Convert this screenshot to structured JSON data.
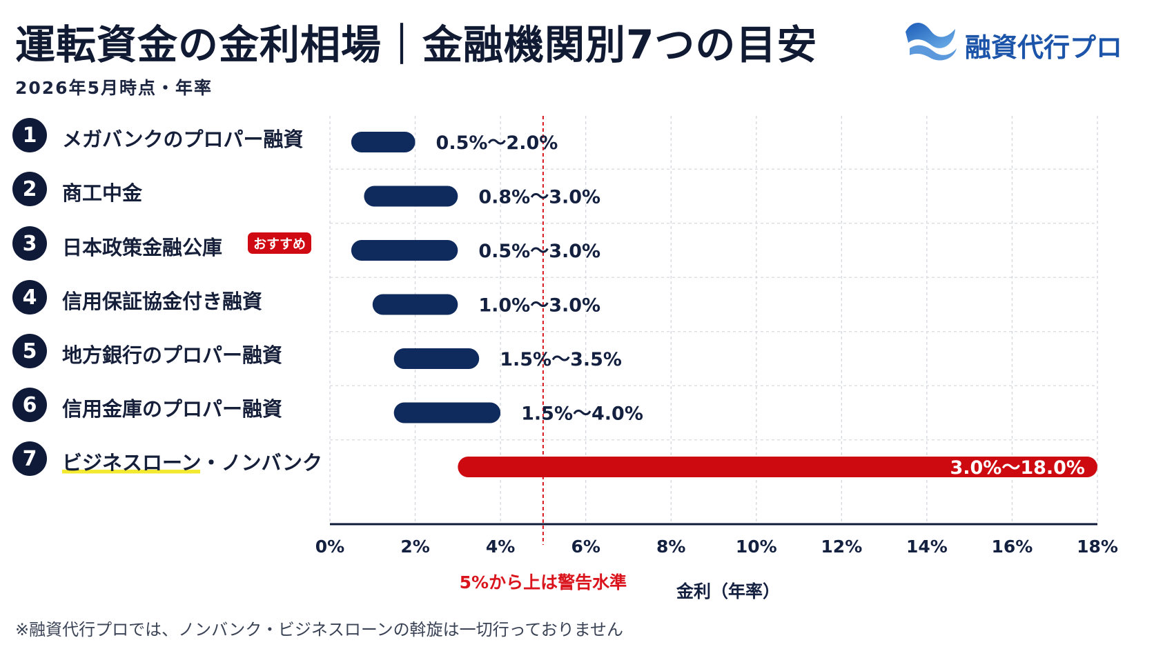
{
  "header": {
    "title": "運転資金の金利相場｜金融機関別7つの目安",
    "subtitle": "2026年5月時点・年率"
  },
  "brand": {
    "name": "融資代行プロ",
    "logo_icon": "wave-logo-icon",
    "color": "#1b54a8"
  },
  "rows": [
    {
      "num": "1",
      "label": "メガバンクのプロパー融資"
    },
    {
      "num": "2",
      "label": "商工中金"
    },
    {
      "num": "3",
      "label": "日本政策金融公庫",
      "badge": "おすすめ"
    },
    {
      "num": "4",
      "label": "信用保証協金付き融資"
    },
    {
      "num": "5",
      "label": "地方銀行のプロパー融資"
    },
    {
      "num": "6",
      "label": "信用金庫のプロパー融資"
    },
    {
      "num": "7",
      "label": "ビジネスローン・ノンバンク",
      "highlight": true
    }
  ],
  "chart_data": {
    "type": "bar",
    "orientation": "horizontal-range",
    "categories": [
      "メガバンクのプロパー融資",
      "商工中金",
      "日本政策金融公庫",
      "信用保証協金付き融資",
      "地方銀行のプロパー融資",
      "信用金庫のプロパー融資",
      "ビジネスローン・ノンバンク"
    ],
    "ranges": [
      [
        0.5,
        2.0
      ],
      [
        0.8,
        3.0
      ],
      [
        0.5,
        3.0
      ],
      [
        1.0,
        3.0
      ],
      [
        1.5,
        3.5
      ],
      [
        1.5,
        4.0
      ],
      [
        3.0,
        18.0
      ]
    ],
    "data_labels": [
      "0.5%～2.0%",
      "0.8%～3.0%",
      "0.5%～3.0%",
      "1.0%～3.0%",
      "1.5%～3.5%",
      "1.5%～4.0%",
      "3.0%～18.0%"
    ],
    "xlim": [
      0,
      18
    ],
    "xticks": [
      0,
      2,
      4,
      6,
      8,
      10,
      12,
      14,
      16,
      18
    ],
    "xtick_labels": [
      "0%",
      "2%",
      "4%",
      "6%",
      "8%",
      "10%",
      "12%",
      "14%",
      "16%",
      "18%"
    ],
    "xlabel": "金利（年率）",
    "reference_line": {
      "value": 5,
      "label": "5%から上は警告水準",
      "color": "#d9141c",
      "style": "dashed"
    },
    "grid": true,
    "colors": {
      "default": "#0f2a5c",
      "highlight": "#cc0a10"
    },
    "highlight_index": 6
  },
  "footnote": "※融資代行プロでは、ノンバンク・ビジネスローンの斡旋は一切行っておりません"
}
